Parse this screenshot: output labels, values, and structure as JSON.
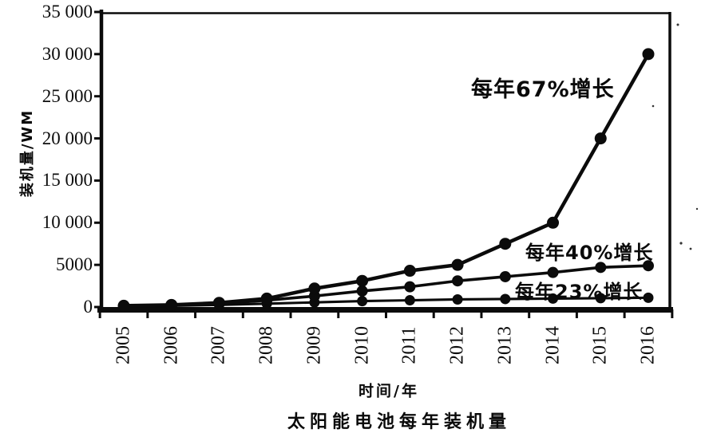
{
  "figure": {
    "ylabel": "装机量/WM",
    "xlabel": "时间/年",
    "caption": "太阳能电池每年装机量"
  },
  "chart_data": {
    "type": "line",
    "title": "太阳能电池每年装机量",
    "xlabel": "时间/年",
    "ylabel": "装机量/WM",
    "x_categories": [
      "2005",
      "2006",
      "2007",
      "2008",
      "2009",
      "2010",
      "2011",
      "2012",
      "2013",
      "2014",
      "2015",
      "2016"
    ],
    "ylim": [
      0,
      35000
    ],
    "y_ticks": [
      0,
      5000,
      10000,
      15000,
      20000,
      25000,
      30000,
      35000
    ],
    "y_tick_labels": [
      "0",
      "5000",
      "10 000",
      "15 000",
      "20 000",
      "25 000",
      "30 000",
      "35 000"
    ],
    "grid": false,
    "legend": "inline-annotations",
    "marker": "filled-circle",
    "line_color": "#0b0b0b",
    "series": [
      {
        "name": "每年67%增长",
        "growth_rate": "67%",
        "values": [
          150,
          250,
          500,
          1000,
          2200,
          3100,
          4300,
          5000,
          7500,
          10000,
          20000,
          30000
        ]
      },
      {
        "name": "每年40%增长",
        "growth_rate": "40%",
        "values": [
          120,
          200,
          400,
          800,
          1300,
          1900,
          2400,
          3100,
          3600,
          4100,
          4700,
          4900
        ]
      },
      {
        "name": "每年23%增长",
        "growth_rate": "23%",
        "values": [
          100,
          150,
          250,
          400,
          550,
          700,
          800,
          900,
          950,
          1000,
          1050,
          1100
        ]
      }
    ]
  }
}
